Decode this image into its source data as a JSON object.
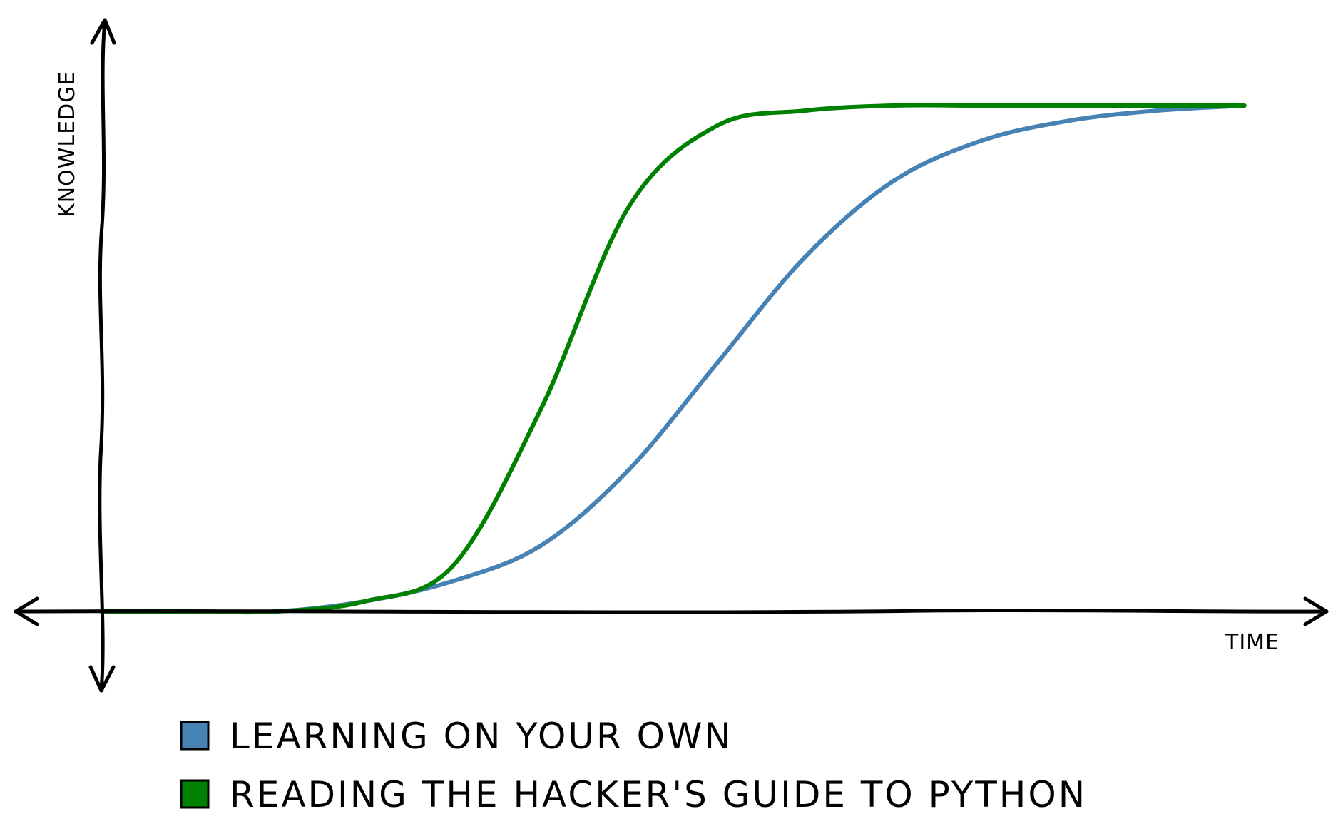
{
  "chart_data": {
    "type": "line",
    "title": "",
    "xlabel": "TIME",
    "ylabel": "KNOWLEDGE",
    "xlim": [
      0,
      14
    ],
    "ylim": [
      0,
      1
    ],
    "grid": false,
    "tick_labels": false,
    "legend_position": "bottom",
    "style": "xkcd hand-drawn",
    "series": [
      {
        "name": "LEARNING ON YOUR OWN",
        "color": "#4682b4",
        "x": [
          0,
          1,
          2,
          3,
          4,
          5,
          6,
          7,
          8,
          9,
          10,
          11,
          12,
          13
        ],
        "y": [
          0.0,
          0.0,
          0.0,
          0.02,
          0.06,
          0.13,
          0.28,
          0.49,
          0.7,
          0.85,
          0.93,
          0.97,
          0.99,
          1.0
        ]
      },
      {
        "name": "READING THE HACKER'S GUIDE TO PYTHON",
        "color": "#008000",
        "x": [
          0,
          1,
          2,
          3,
          4,
          5,
          6,
          7,
          8,
          9,
          10,
          11,
          12,
          13
        ],
        "y": [
          0.0,
          0.0,
          0.0,
          0.02,
          0.09,
          0.4,
          0.8,
          0.96,
          0.99,
          1.0,
          1.0,
          1.0,
          1.0,
          1.0
        ]
      }
    ]
  }
}
